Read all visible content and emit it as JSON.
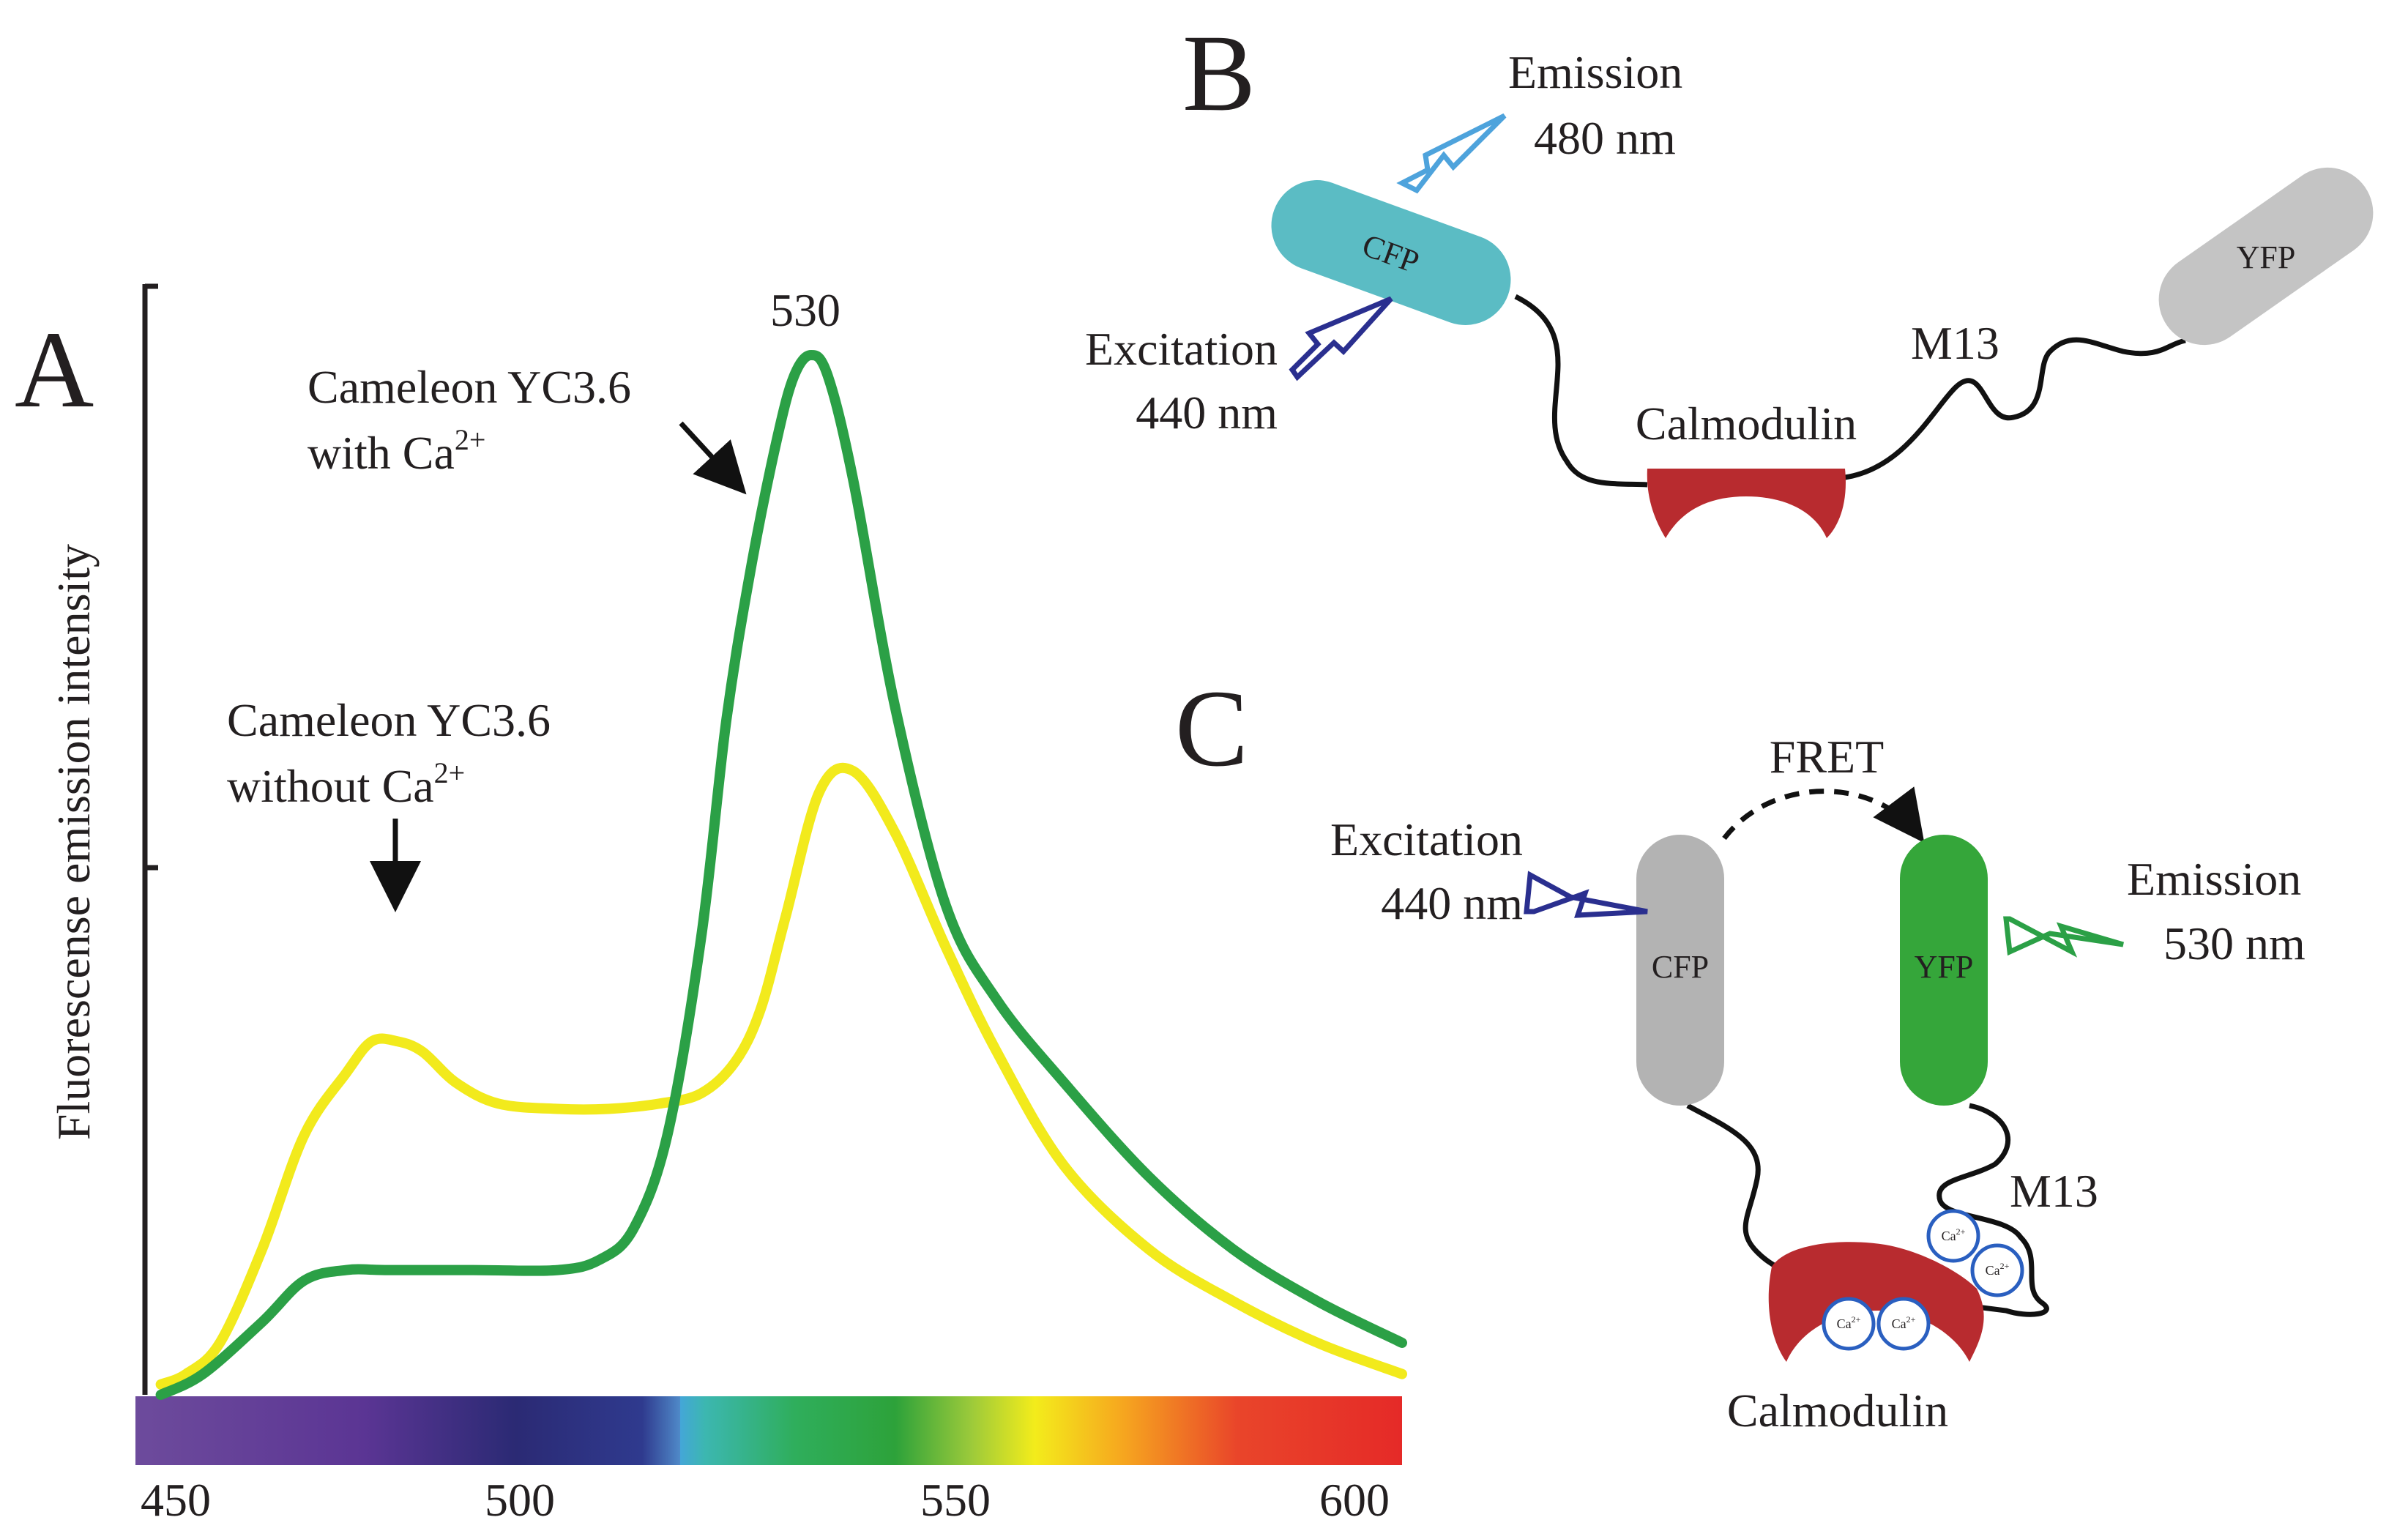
{
  "panels": {
    "a": {
      "letter": "A"
    },
    "b": {
      "letter": "B"
    },
    "c": {
      "letter": "C"
    }
  },
  "chart_data": {
    "type": "line",
    "title": "",
    "xlabel": "",
    "ylabel": "Fluorescense emission intensity",
    "xlim": [
      450,
      600
    ],
    "ylim": [
      0,
      100
    ],
    "x_tick_labels": [
      "450",
      "500",
      "550",
      "600"
    ],
    "peak_label": "530",
    "series": [
      {
        "name": "Cameleon YC3.6 without Ca2+",
        "color": "#f2ea1c",
        "x": [
          453,
          456,
          460,
          465,
          470,
          475,
          478,
          481,
          484,
          488,
          493,
          500,
          506,
          512,
          517,
          521,
          524,
          527,
          531,
          535,
          540,
          546,
          552,
          560,
          570,
          580,
          590,
          600
        ],
        "y": [
          1,
          2,
          5,
          14,
          25,
          31,
          34,
          34,
          33,
          30,
          28,
          27.5,
          27.5,
          28,
          29,
          32,
          37,
          46,
          58,
          60,
          54,
          43,
          33,
          22,
          14,
          9,
          5,
          2
        ]
      },
      {
        "name": "Cameleon YC3.6 with Ca2+",
        "color": "#2ba046",
        "x": [
          453,
          458,
          465,
          470,
          475,
          480,
          490,
          500,
          505,
          509,
          513,
          517,
          520,
          523,
          526,
          528,
          530,
          532,
          535,
          540,
          546,
          552,
          560,
          570,
          580,
          590,
          600
        ],
        "y": [
          0,
          2,
          7,
          11,
          12,
          12,
          12,
          12,
          13,
          16,
          25,
          44,
          65,
          80,
          92,
          98,
          100,
          98,
          88,
          66,
          47,
          38,
          30,
          21,
          14,
          9,
          5
        ]
      }
    ],
    "annotations": {
      "with_ca": {
        "line1": "Cameleon YC3.6",
        "line2": "with Ca",
        "sup": "2+"
      },
      "without_ca": {
        "line1": "Cameleon YC3.6",
        "line2": "without Ca",
        "sup": "2+"
      }
    }
  },
  "diagram_b": {
    "emission": {
      "line1": "Emission",
      "line2": "480 nm",
      "color": "#4ea3dc"
    },
    "excitation": {
      "line1": "Excitation",
      "line2": "440 nm",
      "color": "#2a2f8f"
    },
    "cfp": {
      "label": "CFP",
      "color": "#5bbcc4"
    },
    "yfp": {
      "label": "YFP",
      "color": "#c4c4c4"
    },
    "calmodulin": {
      "label": "Calmodulin",
      "color": "#b82b2f"
    },
    "m13": {
      "label": "M13"
    }
  },
  "diagram_c": {
    "fret": {
      "label": "FRET"
    },
    "excitation": {
      "line1": "Excitation",
      "line2": "440 nm",
      "color": "#2a2f8f"
    },
    "emission": {
      "line1": "Emission",
      "line2": "530 nm",
      "color": "#2ba046"
    },
    "cfp": {
      "label": "CFP",
      "color": "#b3b3b3"
    },
    "yfp": {
      "label": "YFP",
      "color": "#35a63a"
    },
    "calmodulin": {
      "label": "Calmodulin",
      "color": "#b82b2f"
    },
    "m13": {
      "label": "M13"
    },
    "ca_ion": {
      "label": "Ca",
      "sup": "2+"
    }
  }
}
